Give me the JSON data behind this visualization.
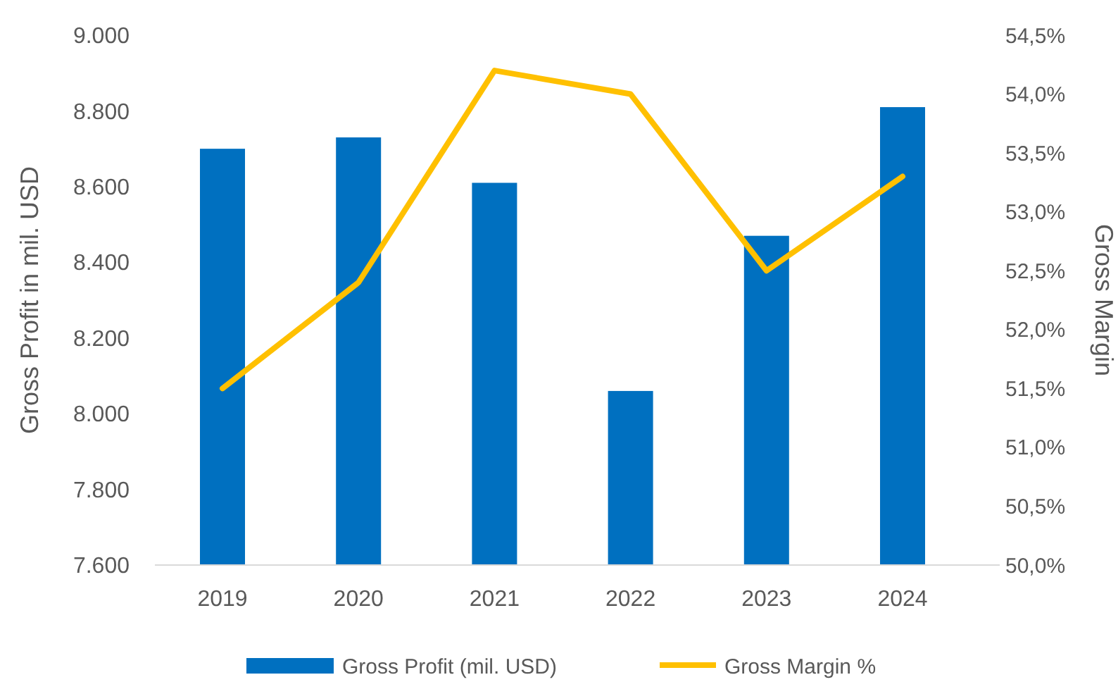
{
  "chart_data": {
    "type": "bar",
    "categories": [
      "2019",
      "2020",
      "2021",
      "2022",
      "2023",
      "2024"
    ],
    "series": [
      {
        "name": "Gross Profit (mil. USD)",
        "color": "#0070c0",
        "values": [
          8700,
          8730,
          8610,
          8060,
          8470,
          8810
        ]
      },
      {
        "type": "line",
        "name": "Gross Margin %",
        "color": "#ffc000",
        "axis": "y2",
        "values": [
          51.5,
          52.4,
          54.2,
          54.0,
          52.5,
          53.3
        ]
      }
    ],
    "ylabel": "Gross Profit in mil. USD",
    "y2label": "Gross Margin",
    "ylim": [
      7600,
      9000
    ],
    "yticks": [
      {
        "value": 7600,
        "label": "7.600"
      },
      {
        "value": 7800,
        "label": "7.800"
      },
      {
        "value": 8000,
        "label": "8.000"
      },
      {
        "value": 8200,
        "label": "8.200"
      },
      {
        "value": 8400,
        "label": "8.400"
      },
      {
        "value": 8600,
        "label": "8.600"
      },
      {
        "value": 8800,
        "label": "8.800"
      },
      {
        "value": 9000,
        "label": "9.000"
      }
    ],
    "y2lim": [
      50,
      54.5
    ],
    "y2ticks": [
      {
        "value": 50,
        "label": "50,0%"
      },
      {
        "value": 50.5,
        "label": "50,5%"
      },
      {
        "value": 51,
        "label": "51,0%"
      },
      {
        "value": 51.5,
        "label": "51,5%"
      },
      {
        "value": 52,
        "label": "52,0%"
      },
      {
        "value": 52.5,
        "label": "52,5%"
      },
      {
        "value": 53,
        "label": "53,0%"
      },
      {
        "value": 53.5,
        "label": "53,5%"
      },
      {
        "value": 54,
        "label": "54,0%"
      },
      {
        "value": 54.5,
        "label": "54,5%"
      }
    ],
    "legend": "bottom"
  }
}
